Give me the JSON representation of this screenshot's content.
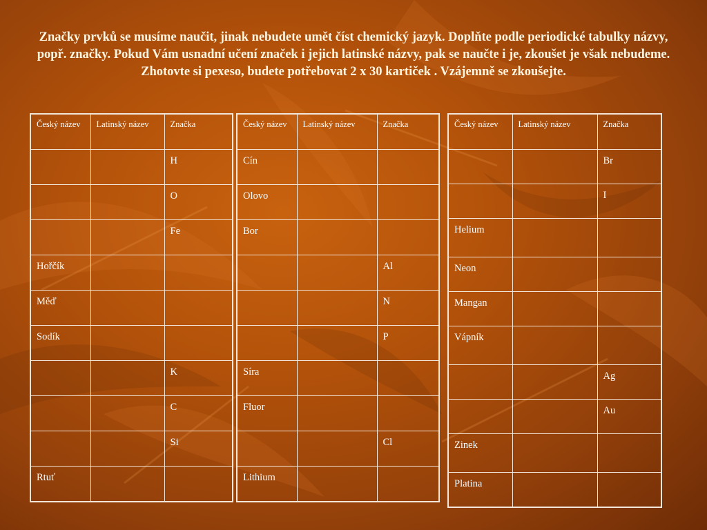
{
  "slide": {
    "title": "Značky prvků se musíme naučit, jinak nebudete umět číst chemický jazyk. Doplňte podle periodické tabulky názvy, popř. značky. Pokud Vám usnadní učení značek i jejich latinské názvy, pak se naučte i je, zkoušet je však nebudeme.  Zhotovte si pexeso, budete potřebovat 2 x 30 kartiček . Vzájemně se zkoušejte.",
    "colors": {
      "title": "#fff5e0",
      "background": "#b3520a",
      "grid_lines": "#f3e6da"
    }
  },
  "tables": [
    {
      "headers": [
        "Český název",
        "Latinský název",
        "Značka"
      ],
      "rows": [
        [
          "",
          "",
          "H"
        ],
        [
          "",
          "",
          "O"
        ],
        [
          "",
          "",
          "Fe"
        ],
        [
          "Hořčík",
          "",
          ""
        ],
        [
          "Měď",
          "",
          ""
        ],
        [
          "Sodík",
          "",
          ""
        ],
        [
          "",
          "",
          "K"
        ],
        [
          "",
          "",
          "C"
        ],
        [
          "",
          "",
          "Si"
        ],
        [
          "Rtuť",
          "",
          ""
        ]
      ]
    },
    {
      "headers": [
        "Český název",
        "Latinský název",
        "Značka"
      ],
      "rows": [
        [
          "Cín",
          "",
          ""
        ],
        [
          "Olovo",
          "",
          ""
        ],
        [
          "Bor",
          "",
          ""
        ],
        [
          "",
          "",
          "Al"
        ],
        [
          "",
          "",
          "N"
        ],
        [
          "",
          "",
          "P"
        ],
        [
          "Síra",
          "",
          ""
        ],
        [
          "Fluor",
          "",
          ""
        ],
        [
          "",
          "",
          "Cl"
        ],
        [
          "Lithium",
          "",
          ""
        ]
      ]
    },
    {
      "headers": [
        "Český název",
        "Latinský název",
        "Značka"
      ],
      "rows": [
        [
          "",
          "",
          "Br"
        ],
        [
          "",
          "",
          "I"
        ],
        [
          "Helium",
          "",
          ""
        ],
        [
          "Neon",
          "",
          ""
        ],
        [
          "Mangan",
          "",
          ""
        ],
        [
          "Vápník",
          "",
          ""
        ],
        [
          "",
          "",
          "Ag"
        ],
        [
          "",
          "",
          "Au"
        ],
        [
          "Zinek",
          "",
          ""
        ],
        [
          "Platina",
          "",
          ""
        ]
      ]
    }
  ]
}
